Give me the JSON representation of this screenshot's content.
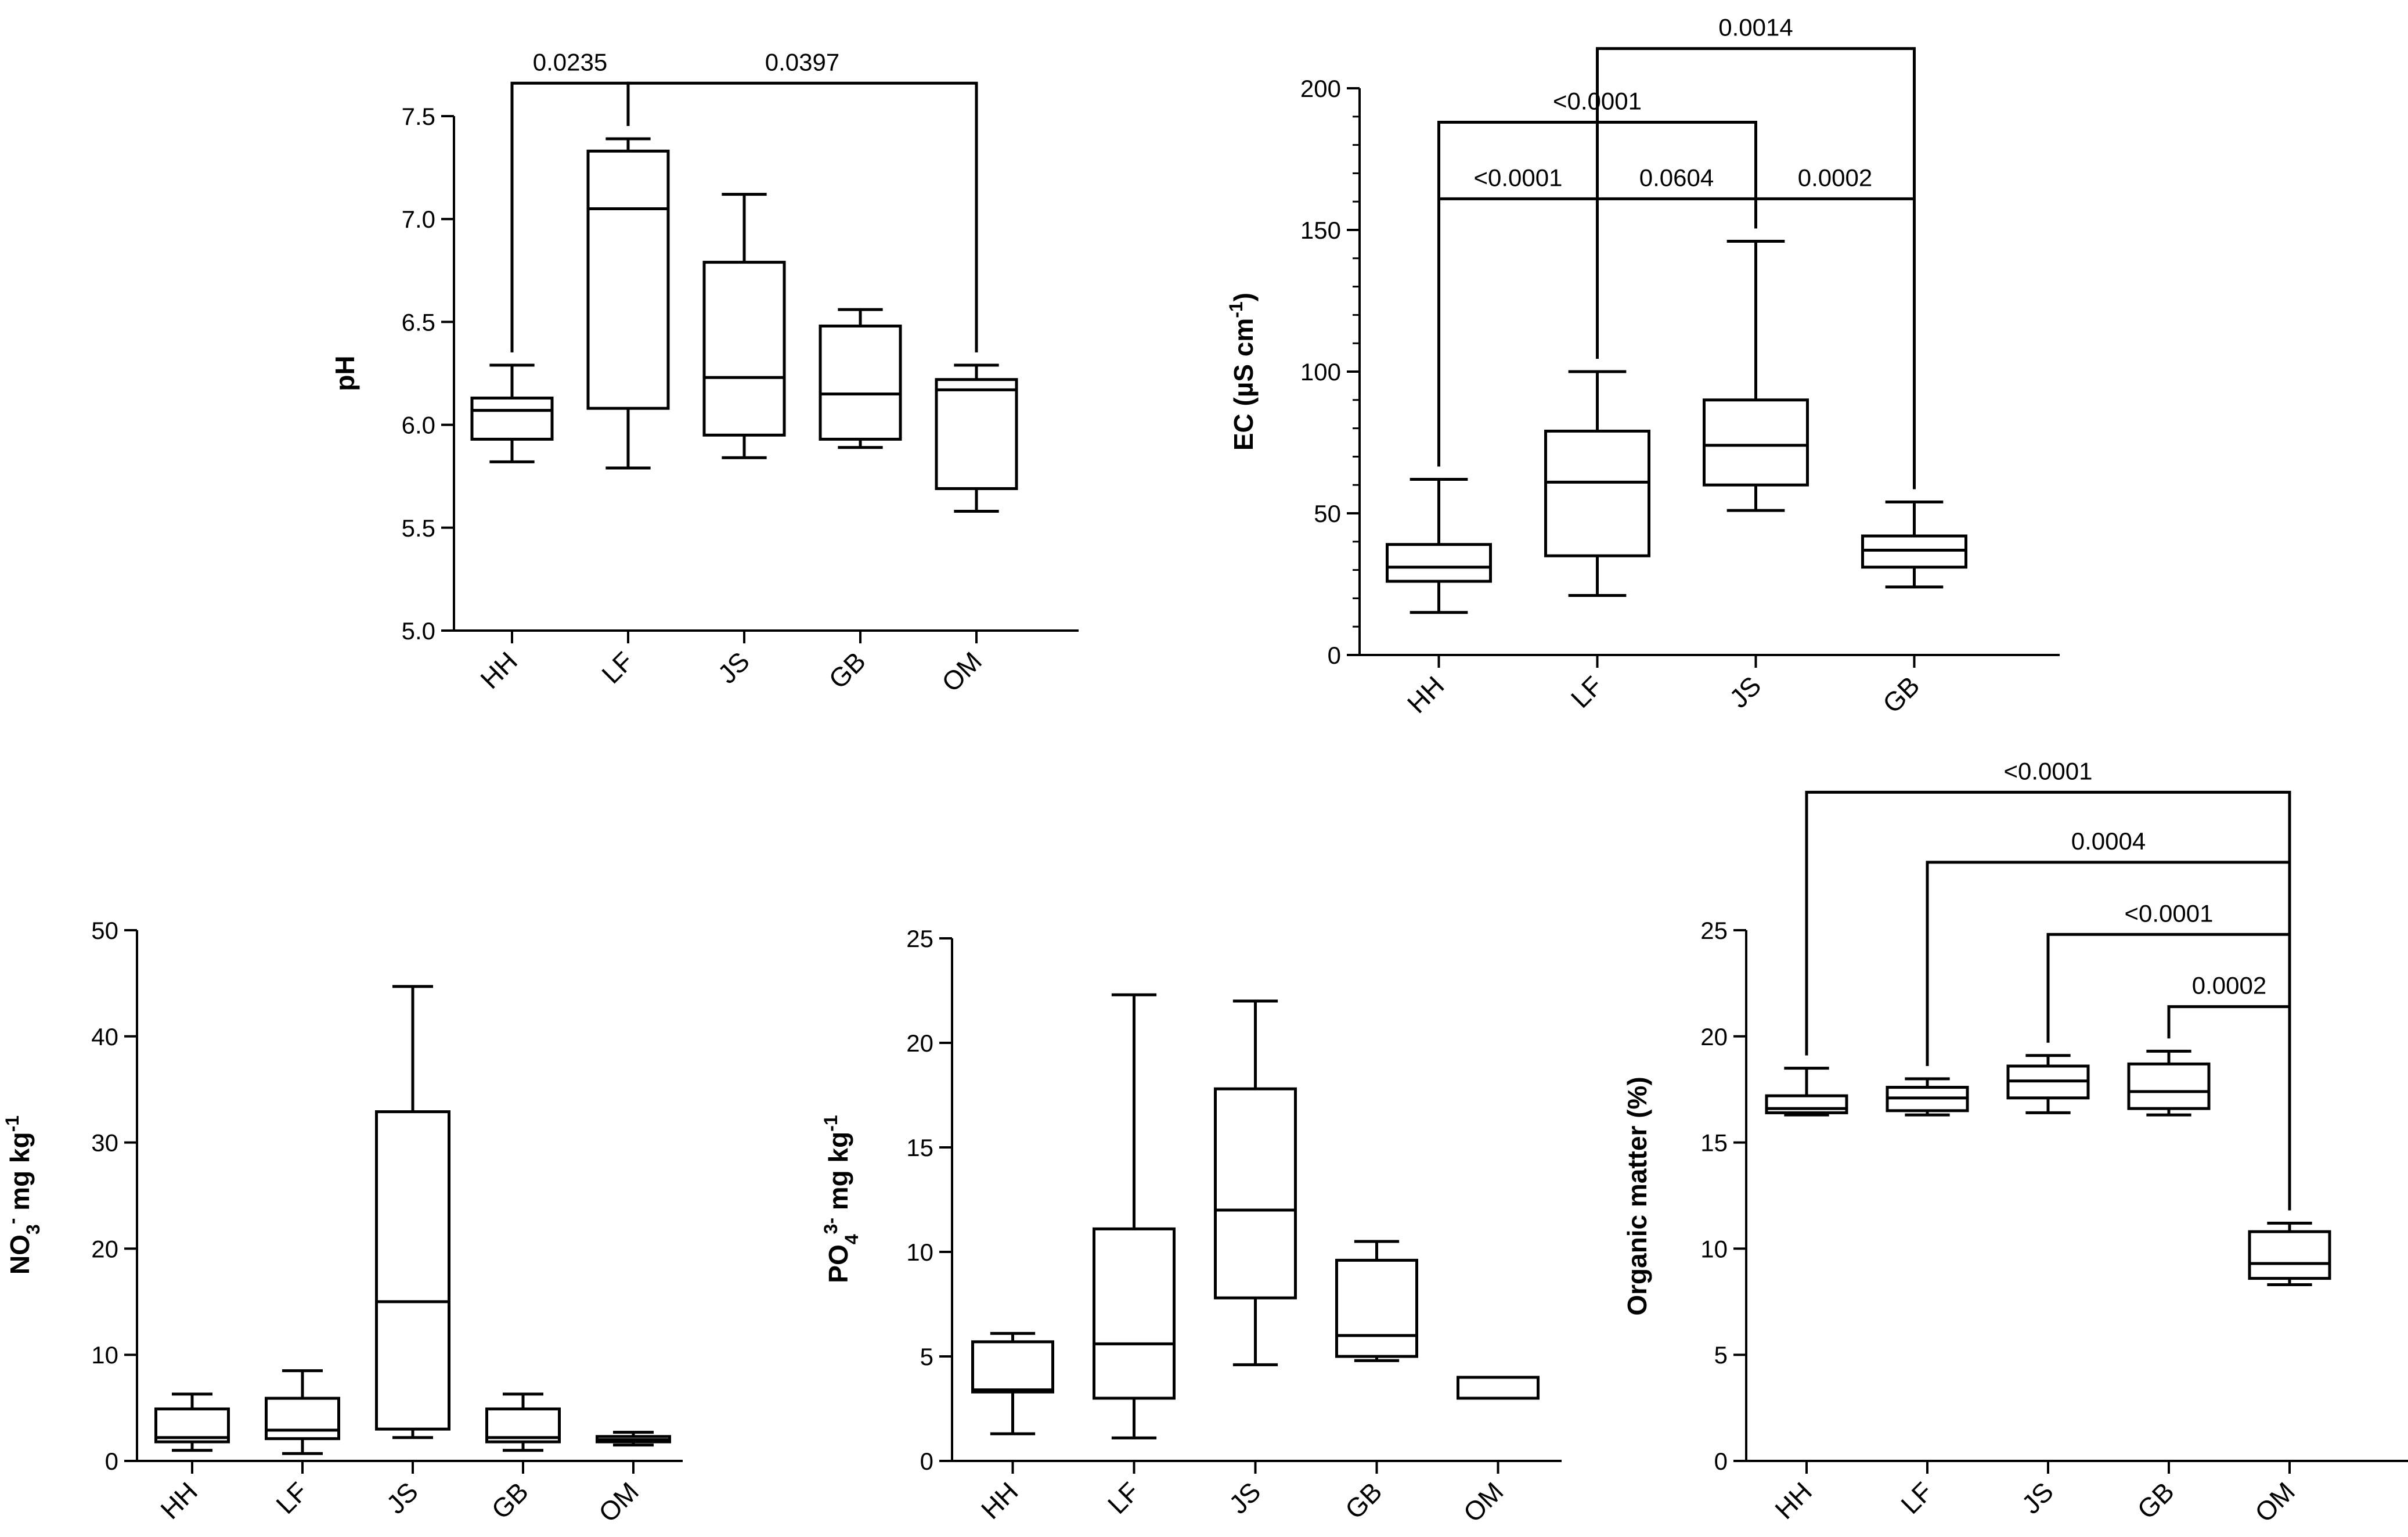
{
  "chart_data": [
    {
      "id": "ph",
      "type": "boxplot",
      "ylabel": "pH",
      "ylim": [
        5.0,
        7.5
      ],
      "ytick_labels": [
        "5.0",
        "5.5",
        "6.0",
        "6.5",
        "7.0",
        "7.5"
      ],
      "categories": [
        "HH",
        "LF",
        "JS",
        "GB",
        "OM"
      ],
      "boxes": [
        {
          "min": 5.82,
          "q1": 5.93,
          "median": 6.07,
          "q3": 6.13,
          "max": 6.29
        },
        {
          "min": 5.79,
          "q1": 6.08,
          "median": 7.05,
          "q3": 7.33,
          "max": 7.39
        },
        {
          "min": 5.84,
          "q1": 5.95,
          "median": 6.23,
          "q3": 6.79,
          "max": 7.12
        },
        {
          "min": 5.89,
          "q1": 5.93,
          "median": 6.15,
          "q3": 6.48,
          "max": 6.56
        },
        {
          "min": 5.58,
          "q1": 5.69,
          "median": 6.17,
          "q3": 6.22,
          "max": 6.29
        }
      ],
      "comparisons": [
        {
          "from": 0,
          "to": 1,
          "label": "0.0235",
          "level": 7.66
        },
        {
          "from": 1,
          "to": 4,
          "label": "0.0397",
          "level": 7.66
        }
      ]
    },
    {
      "id": "ec",
      "type": "boxplot",
      "ylabel": "EC (µS cm",
      "ylabel_sup": "-1",
      "ylabel_end": ")",
      "ylim": [
        0,
        200
      ],
      "ytick_labels": [
        "0",
        "50",
        "100",
        "150",
        "200"
      ],
      "categories": [
        "HH",
        "LF",
        "JS",
        "GB"
      ],
      "boxes": [
        {
          "min": 15,
          "q1": 26,
          "median": 31,
          "q3": 39,
          "max": 62
        },
        {
          "min": 21,
          "q1": 35,
          "median": 61,
          "q3": 79,
          "max": 100
        },
        {
          "min": 51,
          "q1": 60,
          "median": 74,
          "q3": 90,
          "max": 146
        },
        {
          "min": 24,
          "q1": 31,
          "median": 37,
          "q3": 42,
          "max": 54
        }
      ],
      "comparisons": [
        {
          "from": 0,
          "to": 1,
          "label": "<0.0001",
          "level": 161
        },
        {
          "from": 1,
          "to": 2,
          "label": "0.0604",
          "level": 161
        },
        {
          "from": 2,
          "to": 3,
          "label": "0.0002",
          "level": 161
        },
        {
          "from": 0,
          "to": 2,
          "label": "<0.0001",
          "level": 188
        },
        {
          "from": 1,
          "to": 3,
          "label": "0.0014",
          "level": 214
        }
      ]
    },
    {
      "id": "no3",
      "type": "boxplot",
      "ylabel": "NO",
      "ylabel_sub": "3",
      "ylabel_sup": "-",
      "ylabel_end": " mg kg",
      "ylabel_sup2": "-1",
      "ylim": [
        0,
        50
      ],
      "ytick_labels": [
        "0",
        "10",
        "20",
        "30",
        "40",
        "50"
      ],
      "categories": [
        "HH",
        "LF",
        "JS",
        "GB",
        "OM"
      ],
      "boxes": [
        {
          "min": 1.0,
          "q1": 1.8,
          "median": 2.2,
          "q3": 4.9,
          "max": 6.3
        },
        {
          "min": 0.7,
          "q1": 2.1,
          "median": 2.9,
          "q3": 5.9,
          "max": 8.5
        },
        {
          "min": 2.2,
          "q1": 3.0,
          "median": 15.0,
          "q3": 32.9,
          "max": 44.7
        },
        {
          "min": 1.0,
          "q1": 1.8,
          "median": 2.2,
          "q3": 4.9,
          "max": 6.3
        },
        {
          "min": 1.5,
          "q1": 1.8,
          "median": 2.0,
          "q3": 2.3,
          "max": 2.7
        }
      ],
      "comparisons": []
    },
    {
      "id": "po4",
      "type": "boxplot",
      "ylabel": "PO",
      "ylabel_sub": "4",
      "ylabel_sup": "3-",
      "ylabel_end": " mg kg",
      "ylabel_sup2": "-1",
      "ylim": [
        0,
        25
      ],
      "ytick_labels": [
        "0",
        "5",
        "10",
        "15",
        "20",
        "25"
      ],
      "categories": [
        "HH",
        "LF",
        "JS",
        "GB",
        "OM"
      ],
      "boxes": [
        {
          "min": 1.3,
          "q1": 3.3,
          "median": 3.4,
          "q3": 5.7,
          "max": 6.1
        },
        {
          "min": 1.1,
          "q1": 3.0,
          "median": 5.6,
          "q3": 11.1,
          "max": 22.3
        },
        {
          "min": 4.6,
          "q1": 7.8,
          "median": 12.0,
          "q3": 17.8,
          "max": 22.0
        },
        {
          "min": 4.8,
          "q1": 5.0,
          "median": 6.0,
          "q3": 9.6,
          "max": 10.5
        },
        {
          "min": 3.0,
          "q1": 3.0,
          "median": 3.0,
          "q3": 4.0,
          "max": 4.0
        }
      ],
      "comparisons": []
    },
    {
      "id": "om",
      "type": "boxplot",
      "ylabel": "Organic matter (%)",
      "ylim": [
        0,
        25
      ],
      "ytick_labels": [
        "0",
        "5",
        "10",
        "15",
        "20",
        "25"
      ],
      "categories": [
        "HH",
        "LF",
        "JS",
        "GB",
        "OM"
      ],
      "boxes": [
        {
          "min": 16.3,
          "q1": 16.4,
          "median": 16.6,
          "q3": 17.2,
          "max": 18.5
        },
        {
          "min": 16.3,
          "q1": 16.5,
          "median": 17.1,
          "q3": 17.6,
          "max": 18.0
        },
        {
          "min": 16.4,
          "q1": 17.1,
          "median": 17.9,
          "q3": 18.6,
          "max": 19.1
        },
        {
          "min": 16.3,
          "q1": 16.6,
          "median": 17.4,
          "q3": 18.7,
          "max": 19.3
        },
        {
          "min": 8.3,
          "q1": 8.6,
          "median": 9.3,
          "q3": 10.8,
          "max": 11.2
        }
      ],
      "comparisons": [
        {
          "from": 3,
          "to": 4,
          "label": "0.0002",
          "level": 21.4
        },
        {
          "from": 2,
          "to": 4,
          "label": "<0.0001",
          "level": 24.8
        },
        {
          "from": 1,
          "to": 4,
          "label": "0.0004",
          "level": 28.2
        },
        {
          "from": 0,
          "to": 4,
          "label": "<0.0001",
          "level": 31.5
        }
      ]
    }
  ]
}
